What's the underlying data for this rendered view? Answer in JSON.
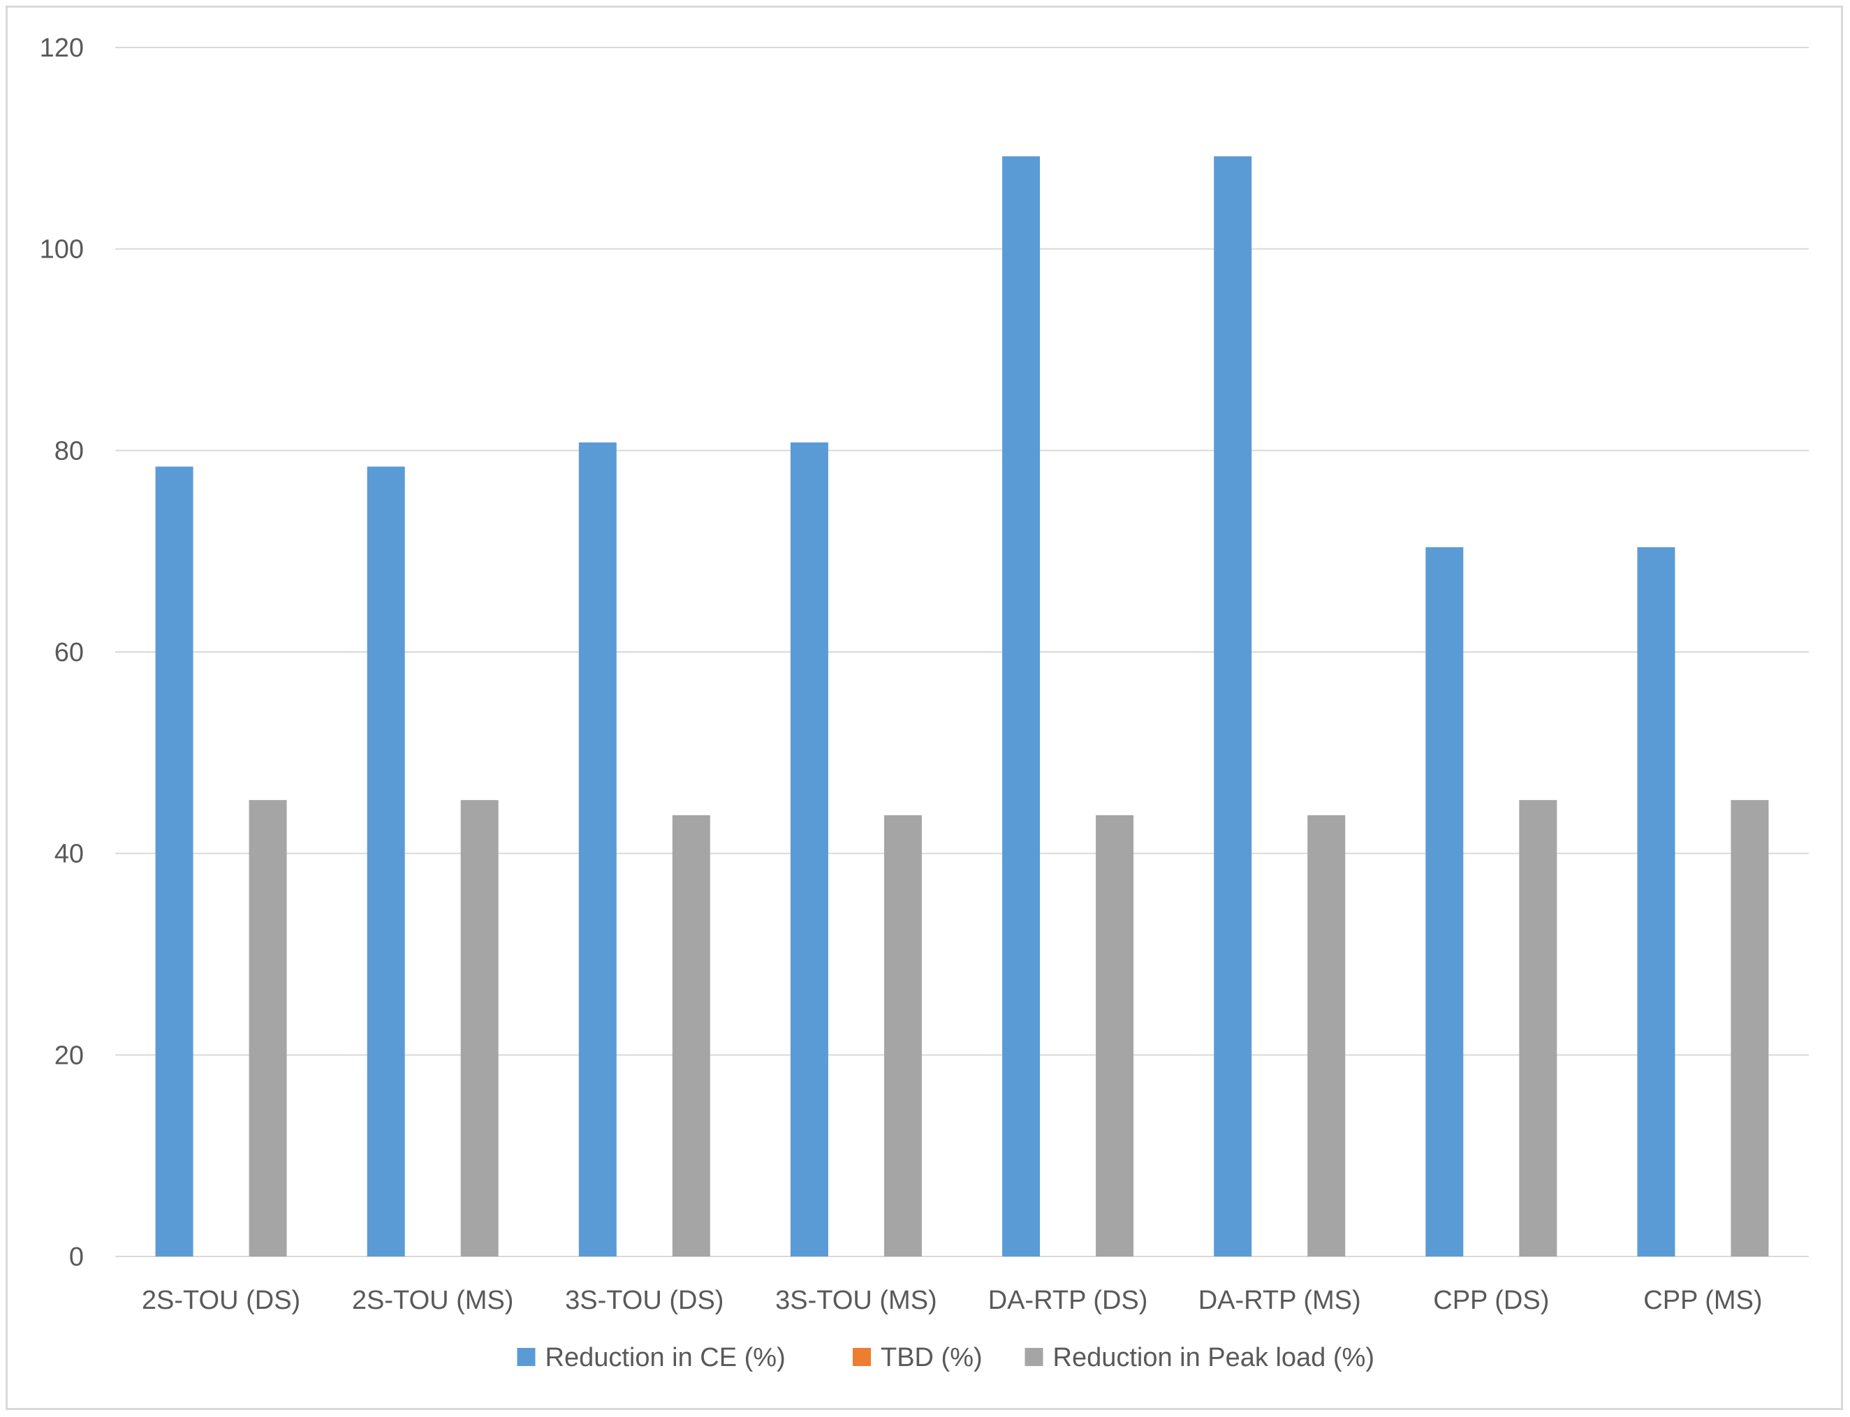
{
  "chart_data": {
    "type": "bar",
    "title": "",
    "xlabel": "",
    "ylabel": "",
    "ylim": [
      0,
      120
    ],
    "y_ticks": [
      0,
      20,
      40,
      60,
      80,
      100,
      120
    ],
    "grid": "horizontal",
    "legend_position": "bottom",
    "categories": [
      "2S-TOU (DS)",
      "2S-TOU (MS)",
      "3S-TOU (DS)",
      "3S-TOU (MS)",
      "DA-RTP (DS)",
      "DA-RTP (MS)",
      "CPP (DS)",
      "CPP (MS)"
    ],
    "series": [
      {
        "name": "Reduction in CE (%)",
        "color": "#5b9bd5",
        "values": [
          78.4,
          78.4,
          80.8,
          80.8,
          109.2,
          109.2,
          70.4,
          70.4
        ]
      },
      {
        "name": "TBD (%)",
        "color": "#ed7d31",
        "values": [
          0,
          0,
          0,
          0,
          0,
          0,
          0,
          0
        ]
      },
      {
        "name": "Reduction in Peak load (%)",
        "color": "#a5a5a5",
        "values": [
          45.3,
          45.3,
          43.8,
          43.8,
          43.8,
          43.8,
          45.3,
          45.3
        ]
      }
    ]
  }
}
